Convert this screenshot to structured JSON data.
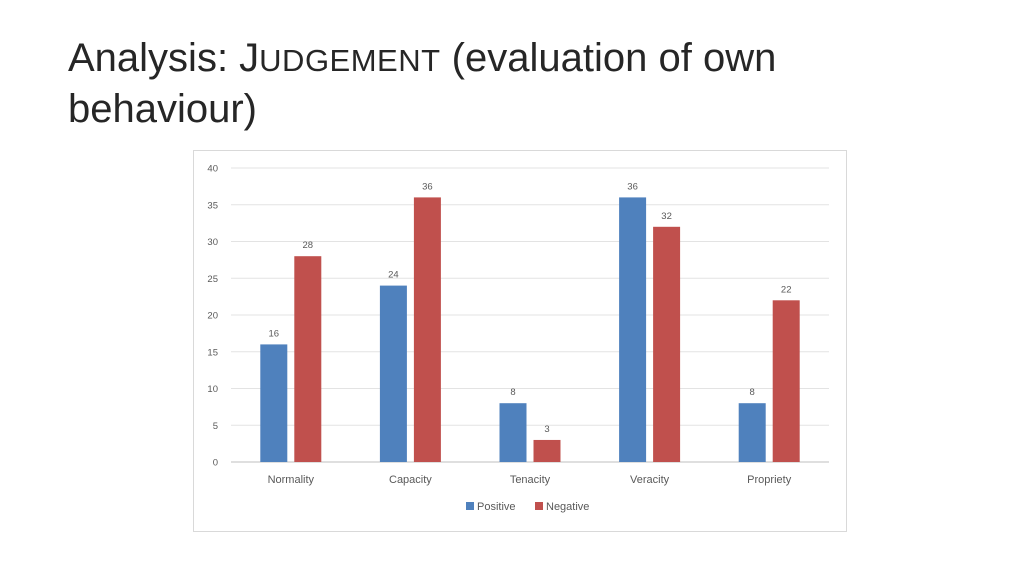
{
  "slide": {
    "title_prefix": "Analysis: ",
    "title_keyword_first": "J",
    "title_keyword_rest": "UDGEMENT",
    "title_suffix_line1": " (evaluation of own",
    "title_suffix_line2": "behaviour)"
  },
  "chart_data": {
    "type": "bar",
    "categories": [
      "Normality",
      "Capacity",
      "Tenacity",
      "Veracity",
      "Propriety"
    ],
    "series": [
      {
        "name": "Positive",
        "color": "#4f81bd",
        "values": [
          16,
          24,
          8,
          36,
          8
        ]
      },
      {
        "name": "Negative",
        "color": "#c0504d",
        "values": [
          28,
          36,
          3,
          32,
          22
        ]
      }
    ],
    "ylim": [
      0,
      40
    ],
    "yticks": [
      0,
      5,
      10,
      15,
      20,
      25,
      30,
      35,
      40
    ],
    "grid": true,
    "legend_position": "bottom",
    "data_labels": true
  }
}
